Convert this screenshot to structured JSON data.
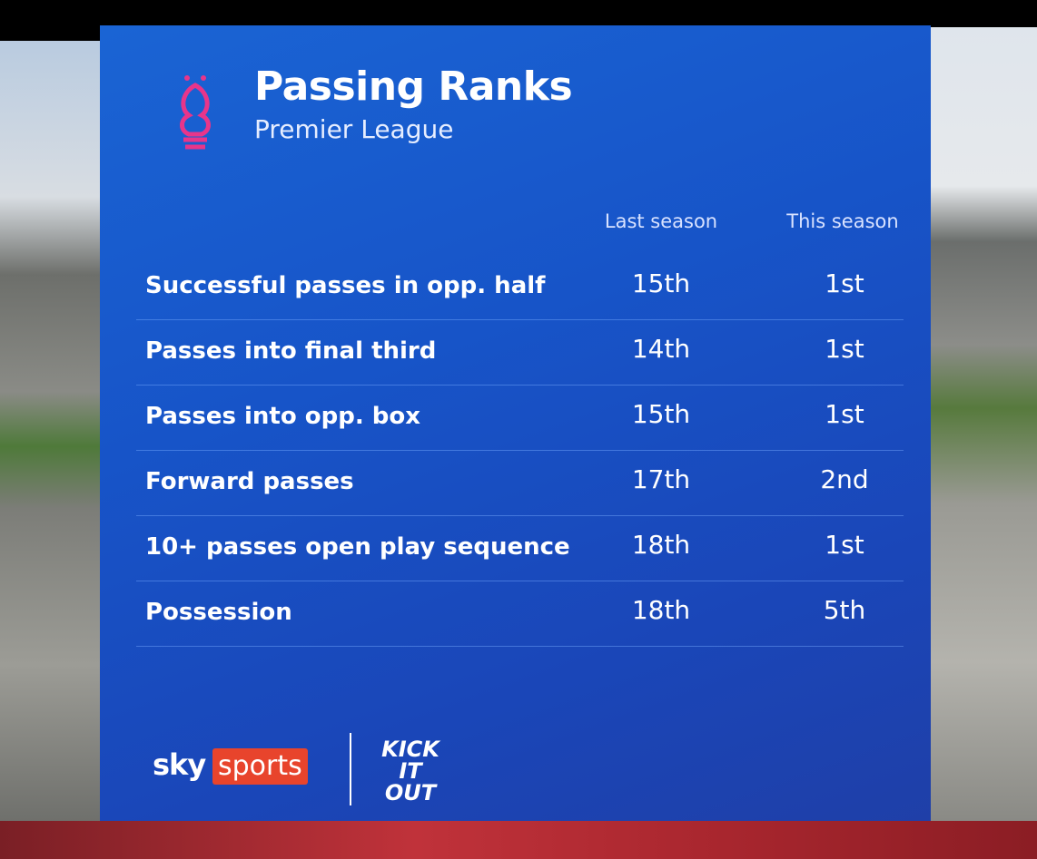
{
  "header": {
    "title": "Passing Ranks",
    "subtitle": "Premier League"
  },
  "table": {
    "columns": [
      "Last season",
      "This season"
    ],
    "rows": [
      [
        "Successful passes in opp. half",
        "15th",
        "1st"
      ],
      [
        "Passes into final third",
        "14th",
        "1st"
      ],
      [
        "Passes into opp. box",
        "15th",
        "1st"
      ],
      [
        "Forward passes",
        "17th",
        "2nd"
      ],
      [
        "10+ passes open play sequence",
        "18th",
        "1st"
      ],
      [
        "Possession",
        "18th",
        "5th"
      ]
    ]
  },
  "footer": {
    "sky": "sky",
    "sports": "sports",
    "kick_it_out": [
      "KICK",
      "IT",
      "OUT"
    ]
  }
}
